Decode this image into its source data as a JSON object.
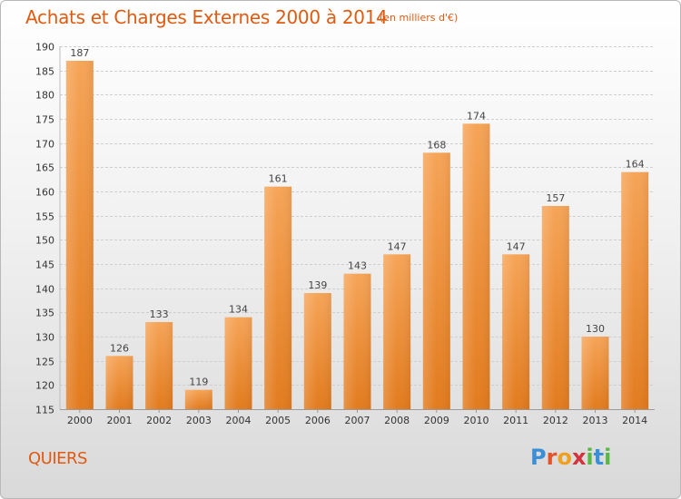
{
  "header": {
    "title": "Achats et Charges Externes 2000 à 2014",
    "subtitle": "(en milliers d'€)"
  },
  "footer": {
    "place": "QUIERS",
    "logo_text": "Proxiti"
  },
  "colors": {
    "accent": "#e05a10",
    "bar_light": "#f6a457",
    "bar_dark": "#e27b1e"
  },
  "chart_data": {
    "type": "bar",
    "title": "Achats et Charges Externes 2000 à 2014",
    "subtitle": "(en milliers d'€)",
    "categories": [
      "2000",
      "2001",
      "2002",
      "2003",
      "2004",
      "2005",
      "2006",
      "2007",
      "2008",
      "2009",
      "2010",
      "2011",
      "2012",
      "2013",
      "2014"
    ],
    "values": [
      187,
      126,
      133,
      119,
      134,
      161,
      139,
      143,
      147,
      168,
      174,
      147,
      157,
      130,
      164
    ],
    "ylim": [
      115,
      190
    ],
    "yticks": [
      115,
      120,
      125,
      130,
      135,
      140,
      145,
      150,
      155,
      160,
      165,
      170,
      175,
      180,
      185,
      190
    ],
    "grid": true,
    "legend": "none",
    "data_labels": true
  }
}
